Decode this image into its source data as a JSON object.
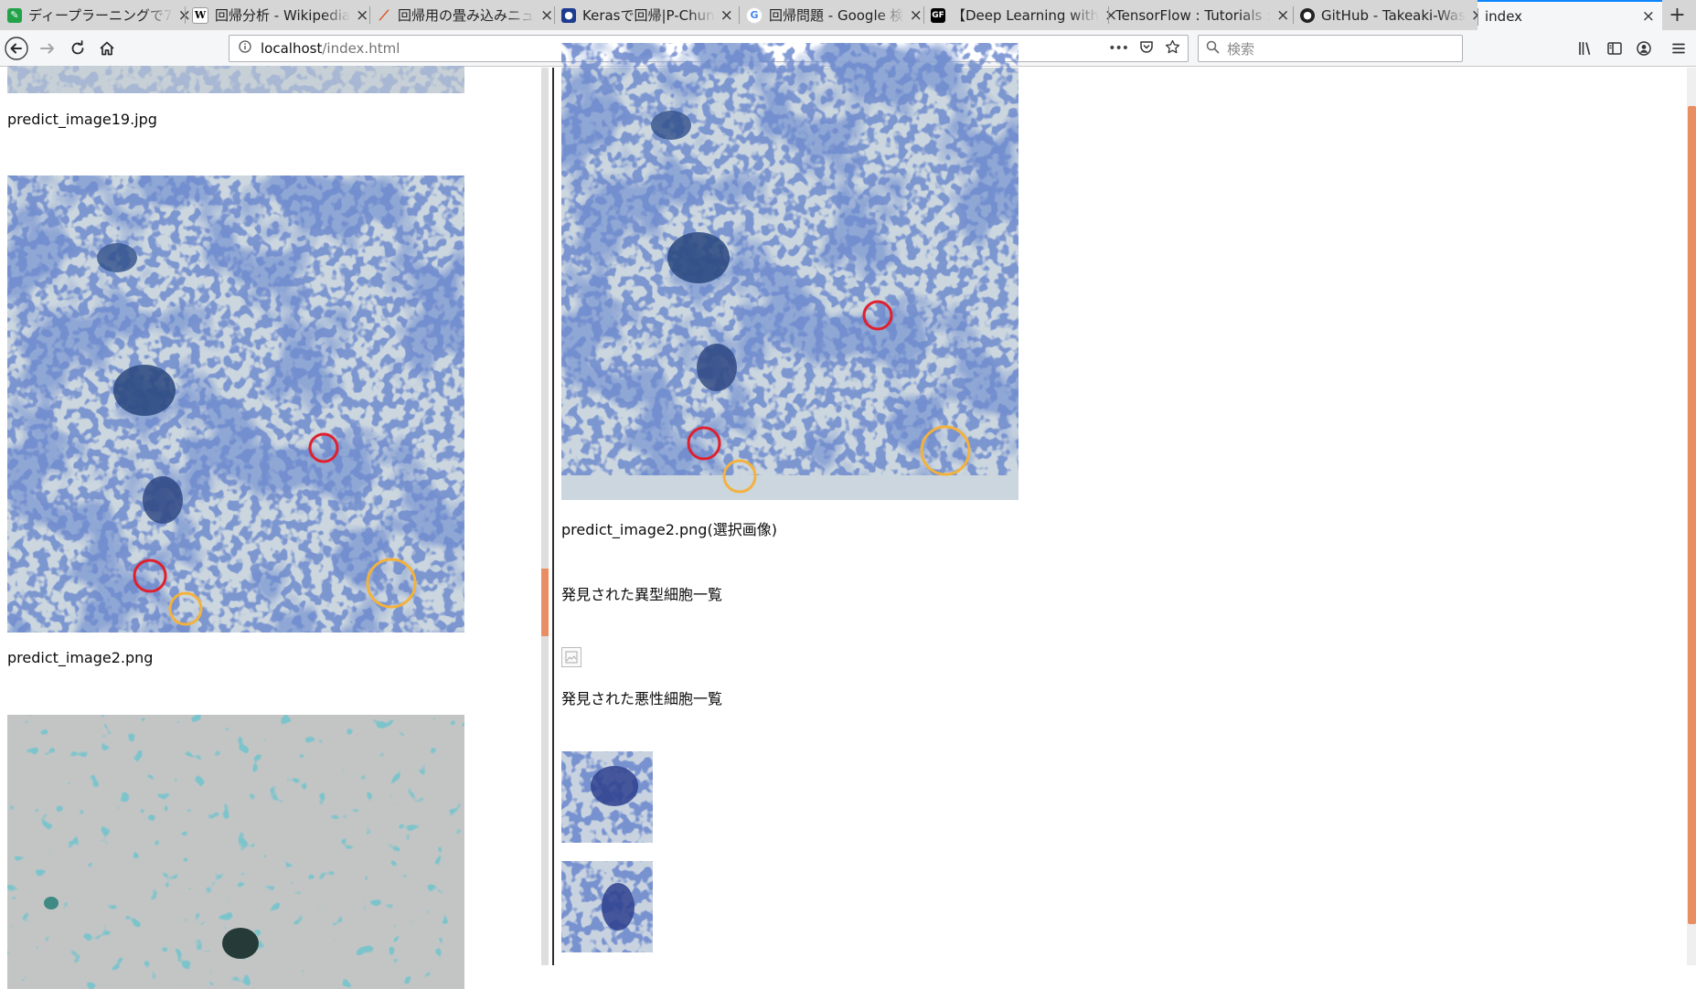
{
  "browser": {
    "tabs": [
      {
        "title": "ディープラーニングで7",
        "icon": "green-leaf-icon",
        "color": "#22a34a"
      },
      {
        "title": "回帰分析 - Wikipedia",
        "icon": "wikipedia-icon",
        "color": "#ffffff"
      },
      {
        "title": "回帰用の畳み込みニュ",
        "icon": "matlab-icon",
        "color": "#d95319"
      },
      {
        "title": "Kerasで回帰|P-Chun",
        "icon": "blue-logo-icon",
        "color": "#1d3c8f"
      },
      {
        "title": "回帰問題 - Google 検",
        "icon": "google-icon",
        "color": "#4285f4"
      },
      {
        "title": "【Deep Learning with",
        "icon": "gf-icon",
        "color": "#000000"
      },
      {
        "title": "TensorFlow : Tutorials :",
        "icon": "",
        "color": ""
      },
      {
        "title": "GitHub - Takeaki-Was",
        "icon": "github-icon",
        "color": "#000000"
      },
      {
        "title": "index",
        "icon": "",
        "color": ""
      }
    ],
    "active_tab": 8,
    "url_host": "localhost",
    "url_path": "/index.html",
    "search_placeholder": "検索",
    "page_actions": "•••"
  },
  "left_panel": {
    "items": [
      {
        "filename": "predict_image19.jpg"
      },
      {
        "filename": "predict_image2.png"
      }
    ]
  },
  "right_panel": {
    "selected_caption": "predict_image2.png(選択画像)",
    "atypical_heading": "発見された異型細胞一覧",
    "malignant_heading": "発見された悪性細胞一覧"
  },
  "colors": {
    "accent_tab": "#0a84ff",
    "scroll_thumb": "#e98e63",
    "marker_red": "#e0202c",
    "marker_orange": "#f4b13b"
  }
}
